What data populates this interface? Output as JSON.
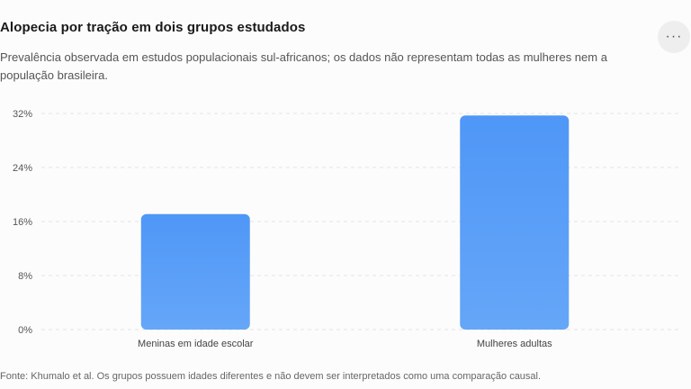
{
  "header": {
    "title": "Alopecia por tração em dois grupos estudados",
    "subtitle": "Prevalência observada em estudos populacionais sul-africanos; os dados não representam todas as mulheres nem a população brasileira.",
    "more_icon": "more-horizontal-icon",
    "more_label": "···"
  },
  "footer": {
    "source": "Fonte: Khumalo et al. Os grupos possuem idades diferentes e não devem ser interpretados como uma comparação causal."
  },
  "colors": {
    "bar_top": "#4f97f7",
    "bar_bottom": "#65a6f8",
    "grid": "#e3e3e3",
    "tick_text": "#555555"
  },
  "chart_data": {
    "type": "bar",
    "categories": [
      "Meninas em idade escolar",
      "Mulheres adultas"
    ],
    "values": [
      17.1,
      31.7
    ],
    "yticks": [
      "0%",
      "8%",
      "16%",
      "24%",
      "32%"
    ],
    "ytick_values": [
      0,
      8,
      16,
      24,
      32
    ],
    "ylim": [
      0,
      32
    ],
    "grid": true,
    "legend": "none"
  }
}
